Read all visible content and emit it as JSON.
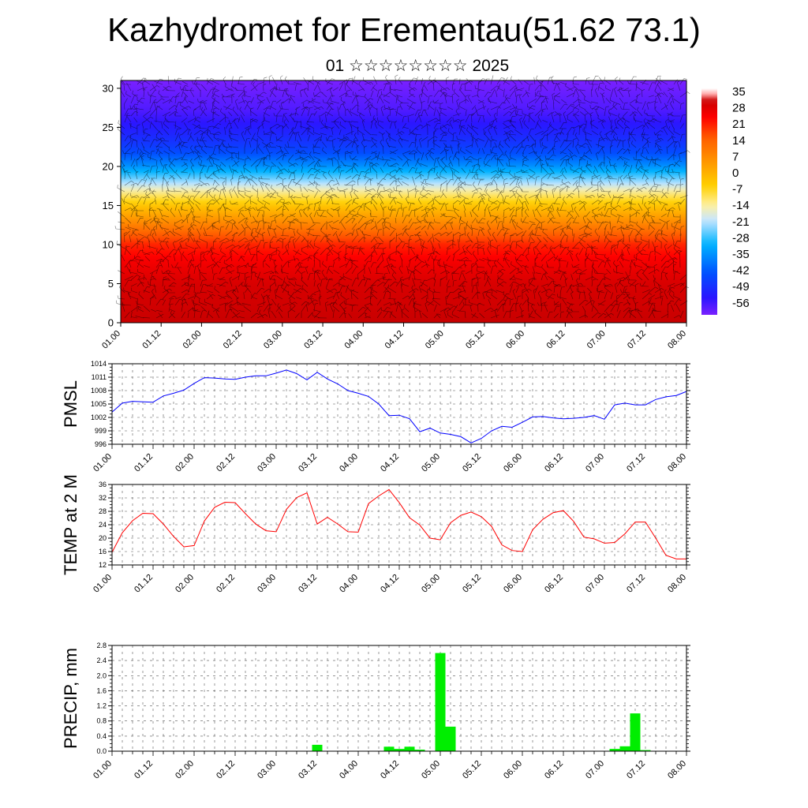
{
  "title": "Kazhydromet for Erementau(51.62 73.1)",
  "subtitle": "01 ☆☆☆☆☆☆☆☆ 2025",
  "time_ticks": [
    "01.00",
    "01.12",
    "02.00",
    "02.12",
    "03.00",
    "03.12",
    "04.00",
    "04.12",
    "05.00",
    "05.12",
    "06.00",
    "06.12",
    "07.00",
    "07.12",
    "08.00"
  ],
  "chart_data": [
    {
      "type": "heatmap",
      "id": "cross-section",
      "x": [
        "01.00",
        "01.12",
        "02.00",
        "02.12",
        "03.00",
        "03.12",
        "04.00",
        "04.12",
        "05.00",
        "05.12",
        "06.00",
        "06.12",
        "07.00",
        "07.12",
        "08.00"
      ],
      "y_ticks": [
        0,
        5,
        10,
        15,
        20,
        25,
        30
      ],
      "ylim": [
        0,
        31
      ],
      "overlay": "wind barbs",
      "colorbar_labels": [
        "35",
        "28",
        "21",
        "14",
        "7",
        "0",
        "-7",
        "-14",
        "-21",
        "-28",
        "-35",
        "-42",
        "-49",
        "-56"
      ],
      "colorscale": [
        "#ffffff",
        "#ff9090",
        "#ff0000",
        "#c80000",
        "#ff5a00",
        "#ff9600",
        "#ffd000",
        "#fff0a0",
        "#c8e6ff",
        "#00b4ff",
        "#0050ff",
        "#2a16ff",
        "#7a20ff"
      ],
      "profile_by_height": [
        [
          0,
          31
        ],
        [
          2,
          30
        ],
        [
          5,
          29
        ],
        [
          8,
          25
        ],
        [
          10,
          21
        ],
        [
          12,
          12
        ],
        [
          13.5,
          5
        ],
        [
          15,
          -2
        ],
        [
          16.5,
          -10
        ],
        [
          18,
          -20
        ],
        [
          20,
          -32
        ],
        [
          22,
          -42
        ],
        [
          24,
          -47
        ],
        [
          27,
          -53
        ],
        [
          31,
          -57
        ]
      ]
    },
    {
      "type": "line",
      "id": "pmsl",
      "ylabel": "PMSL",
      "y_ticks": [
        996,
        999,
        1002,
        1005,
        1008,
        1011,
        1014
      ],
      "ylim": [
        996,
        1014
      ],
      "color": "#0000ff",
      "x": [
        0,
        3,
        6,
        9,
        12,
        15,
        18,
        21,
        24,
        27,
        30,
        33,
        36,
        39,
        42,
        45,
        48,
        51,
        54,
        57,
        60,
        63,
        66,
        69,
        72,
        75,
        78,
        81,
        84,
        87,
        90,
        93,
        96,
        99,
        102,
        105,
        108,
        111,
        114,
        117,
        120,
        123,
        126,
        129,
        132,
        135,
        138,
        141,
        144,
        147,
        150,
        153,
        156,
        159,
        162,
        165,
        168
      ],
      "values": [
        1003.2,
        1005.2,
        1005.6,
        1005.5,
        1005.4,
        1006.8,
        1007.4,
        1008.1,
        1009.6,
        1010.9,
        1010.8,
        1010.6,
        1010.5,
        1011.0,
        1011.3,
        1011.3,
        1011.9,
        1012.6,
        1011.8,
        1010.4,
        1012.1,
        1010.6,
        1009.5,
        1008.0,
        1007.4,
        1006.7,
        1005.0,
        1002.4,
        1002.5,
        1001.7,
        998.8,
        999.6,
        998.5,
        998.2,
        997.7,
        996.3,
        997.3,
        999.0,
        1000.0,
        999.8,
        1000.9,
        1002.1,
        1002.2,
        1001.9,
        1001.7,
        1001.8,
        1002.0,
        1002.4,
        1001.6,
        1004.8,
        1005.2,
        1004.8,
        1004.8,
        1006.0,
        1006.6,
        1006.9,
        1007.8
      ]
    },
    {
      "type": "line",
      "id": "temp2m",
      "ylabel": "TEMP at 2 M",
      "y_ticks": [
        12,
        16,
        20,
        24,
        28,
        32,
        36
      ],
      "ylim": [
        12,
        36
      ],
      "color": "#ff0000",
      "x": [
        0,
        3,
        6,
        9,
        12,
        15,
        18,
        21,
        24,
        27,
        30,
        33,
        36,
        39,
        42,
        45,
        48,
        51,
        54,
        57,
        60,
        63,
        66,
        69,
        72,
        75,
        78,
        81,
        84,
        87,
        90,
        93,
        96,
        99,
        102,
        105,
        108,
        111,
        114,
        117,
        120,
        123,
        126,
        129,
        132,
        135,
        138,
        141,
        144,
        147,
        150,
        153,
        156,
        159,
        162,
        165,
        168
      ],
      "values": [
        15.8,
        21.6,
        25.2,
        27.4,
        27.3,
        24.2,
        20.5,
        17.4,
        17.8,
        25.1,
        29.2,
        30.7,
        30.6,
        27.3,
        24.2,
        22.2,
        21.9,
        28.6,
        32.1,
        33.5,
        24.2,
        26.2,
        24.2,
        21.9,
        21.8,
        30.3,
        32.6,
        34.5,
        30.6,
        26.1,
        23.9,
        20.0,
        19.5,
        24.6,
        26.8,
        27.8,
        26.4,
        23.5,
        18.0,
        16.3,
        16.0,
        22.5,
        25.6,
        27.6,
        28.2,
        25.0,
        20.3,
        19.8,
        18.5,
        18.7,
        21.3,
        24.8,
        24.8,
        20.0,
        14.9,
        13.8,
        13.8
      ]
    },
    {
      "type": "bar",
      "id": "precip",
      "ylabel": "PRECIP, mm",
      "y_ticks": [
        "0.0",
        "0.4",
        "0.8",
        "1.2",
        "1.6",
        "2.0",
        "2.4",
        "2.8"
      ],
      "ylim": [
        0,
        2.8
      ],
      "color": "#00ee00",
      "x": [
        60,
        81,
        84,
        87,
        90,
        96,
        99,
        147,
        150,
        153,
        156
      ],
      "values": [
        0.17,
        0.12,
        0.06,
        0.12,
        0.04,
        2.6,
        0.65,
        0.06,
        0.13,
        1.0,
        0.03
      ]
    }
  ]
}
